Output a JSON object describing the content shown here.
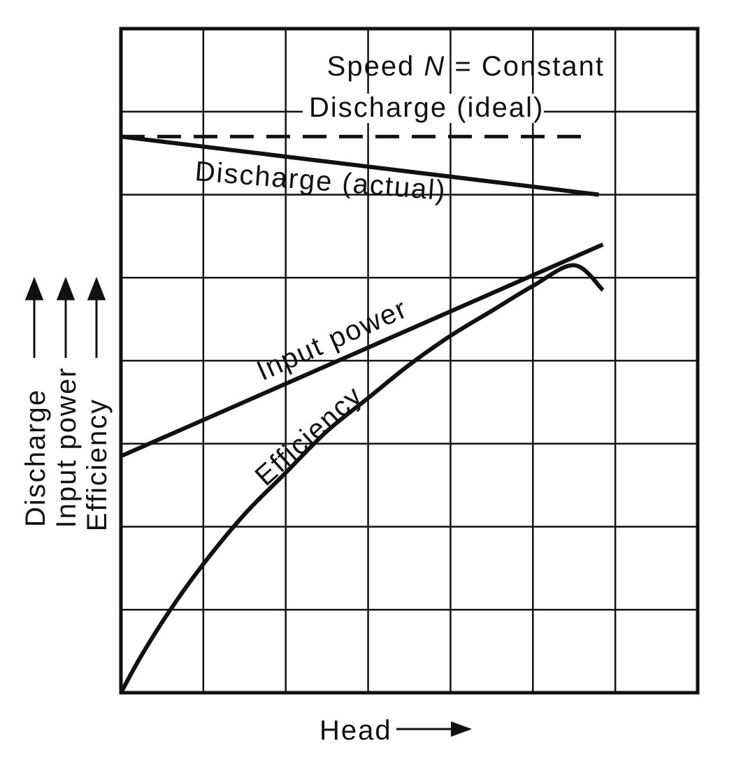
{
  "chart_data": {
    "type": "line",
    "title": "",
    "annotation": {
      "speed_prefix": "Speed ",
      "speed_var": "N",
      "speed_suffix": " = Constant"
    },
    "xlabel": "Head",
    "ylabels": [
      "Discharge",
      "Input power",
      "Efficiency"
    ],
    "xlim": [
      0,
      7
    ],
    "ylim": [
      0,
      8
    ],
    "grid": true,
    "colors": {
      "line": "#111111",
      "grid": "#111111",
      "background": "#ffffff"
    },
    "series": [
      {
        "name": "Discharge (ideal)",
        "dashed": true,
        "x": [
          0,
          5.7
        ],
        "y": [
          6.7,
          6.7
        ]
      },
      {
        "name": "Discharge (actual)",
        "dashed": false,
        "x": [
          0,
          5.8
        ],
        "y": [
          6.7,
          6.0
        ]
      },
      {
        "name": "Input power",
        "dashed": false,
        "x": [
          0,
          5.85
        ],
        "y": [
          2.85,
          5.4
        ]
      },
      {
        "name": "Efficiency",
        "dashed": false,
        "x": [
          0,
          0.25,
          0.6,
          1.0,
          1.5,
          2.0,
          2.5,
          3.0,
          3.5,
          4.0,
          4.5,
          5.0,
          5.5,
          5.85
        ],
        "y": [
          0,
          0.45,
          1.0,
          1.55,
          2.15,
          2.65,
          3.15,
          3.55,
          3.95,
          4.3,
          4.6,
          4.9,
          5.15,
          4.85
        ]
      }
    ]
  }
}
